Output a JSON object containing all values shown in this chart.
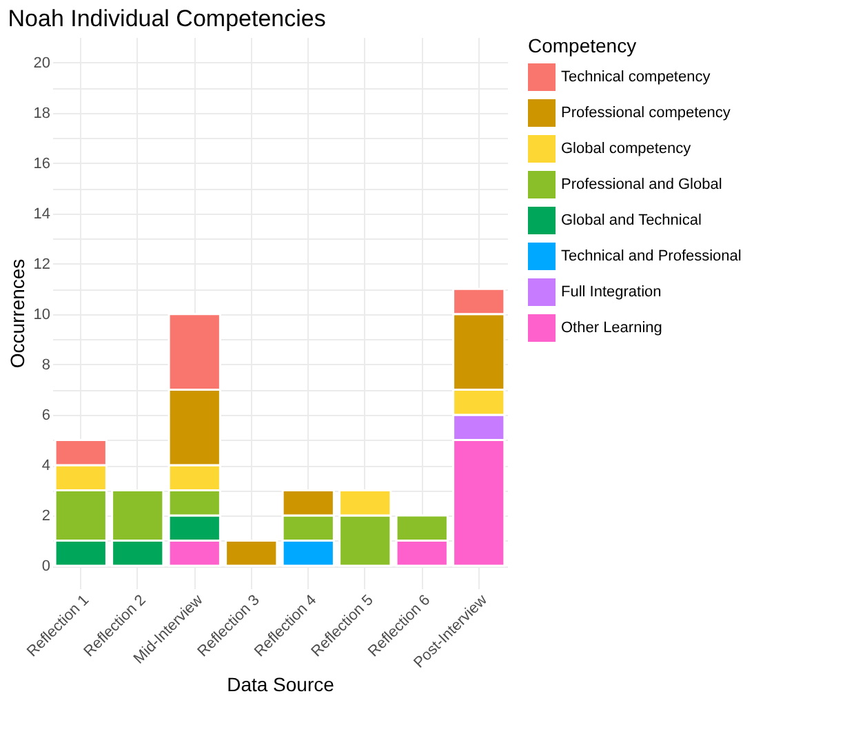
{
  "chart_data": {
    "type": "bar",
    "title": "Noah Individual Competencies",
    "xlabel": "Data Source",
    "ylabel": "Occurrences",
    "legend_title": "Competency",
    "stacked": true,
    "legend": "right",
    "grid": true,
    "categories": [
      "Reflection 1",
      "Reflection 2",
      "Mid-Interview",
      "Reflection 3",
      "Reflection 4",
      "Reflection 5",
      "Reflection 6",
      "Post-Interview"
    ],
    "ylim": [
      -0.9,
      21
    ],
    "yticks": [
      0,
      {
        "value": 1,
        "label": null
      },
      2,
      {
        "value": 3,
        "label": null
      },
      4,
      {
        "value": 5,
        "label": null
      },
      6,
      {
        "value": 7,
        "label": null
      },
      8,
      {
        "value": 9,
        "label": null
      },
      10,
      {
        "value": 11,
        "label": null
      },
      12,
      {
        "value": 13,
        "label": null
      },
      14,
      {
        "value": 15,
        "label": null
      },
      16,
      {
        "value": 17,
        "label": null
      },
      18,
      {
        "value": 19,
        "label": null
      },
      20
    ],
    "series": [
      {
        "name": "Other Learning",
        "color": "#ff61cc",
        "values": [
          null,
          null,
          1,
          null,
          null,
          null,
          1,
          5
        ]
      },
      {
        "name": "Full Integration",
        "color": "#c77cff",
        "values": [
          null,
          null,
          null,
          null,
          null,
          null,
          null,
          1
        ]
      },
      {
        "name": "Technical and Professional",
        "color": "#00a9ff",
        "values": [
          null,
          null,
          null,
          null,
          1,
          null,
          null,
          null
        ]
      },
      {
        "name": "Global and Technical",
        "color": "#00a65a",
        "values": [
          1,
          1,
          1,
          null,
          null,
          null,
          null,
          null
        ]
      },
      {
        "name": "Professional and Global",
        "color": "#8bbf2a",
        "values": [
          2,
          2,
          1,
          null,
          1,
          2,
          1,
          null
        ]
      },
      {
        "name": "Global competency",
        "color": "#fdd835",
        "values": [
          1,
          null,
          1,
          null,
          null,
          1,
          null,
          1
        ]
      },
      {
        "name": "Professional competency",
        "color": "#cd9600",
        "values": [
          null,
          null,
          3,
          1,
          1,
          null,
          null,
          3
        ]
      },
      {
        "name": "Technical competency",
        "color": "#f8766d",
        "values": [
          1,
          null,
          3,
          null,
          null,
          null,
          null,
          1
        ]
      }
    ]
  }
}
